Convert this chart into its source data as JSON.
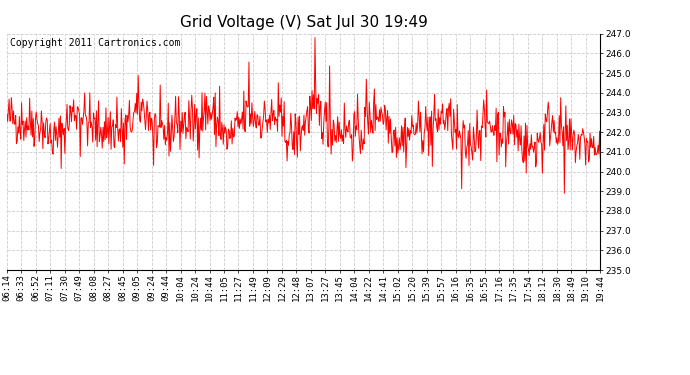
{
  "title": "Grid Voltage (V) Sat Jul 30 19:49",
  "copyright": "Copyright 2011 Cartronics.com",
  "line_color": "#ff0000",
  "bg_color": "#ffffff",
  "plot_bg_color": "#ffffff",
  "grid_color": "#cccccc",
  "ylim": [
    235.0,
    247.0
  ],
  "yticks": [
    235.0,
    236.0,
    237.0,
    238.0,
    239.0,
    240.0,
    241.0,
    242.0,
    243.0,
    244.0,
    245.0,
    246.0,
    247.0
  ],
  "xtick_labels": [
    "06:14",
    "06:33",
    "06:52",
    "07:11",
    "07:30",
    "07:49",
    "08:08",
    "08:27",
    "08:45",
    "09:05",
    "09:24",
    "09:44",
    "10:04",
    "10:24",
    "10:44",
    "11:05",
    "11:27",
    "11:49",
    "12:09",
    "12:29",
    "12:48",
    "13:07",
    "13:27",
    "13:45",
    "14:04",
    "14:22",
    "14:41",
    "15:02",
    "15:20",
    "15:39",
    "15:57",
    "16:16",
    "16:35",
    "16:55",
    "17:16",
    "17:35",
    "17:54",
    "18:12",
    "18:30",
    "18:49",
    "19:10",
    "19:44"
  ],
  "title_fontsize": 11,
  "tick_fontsize": 6.5,
  "copyright_fontsize": 7,
  "line_width": 0.7,
  "seed": 42
}
